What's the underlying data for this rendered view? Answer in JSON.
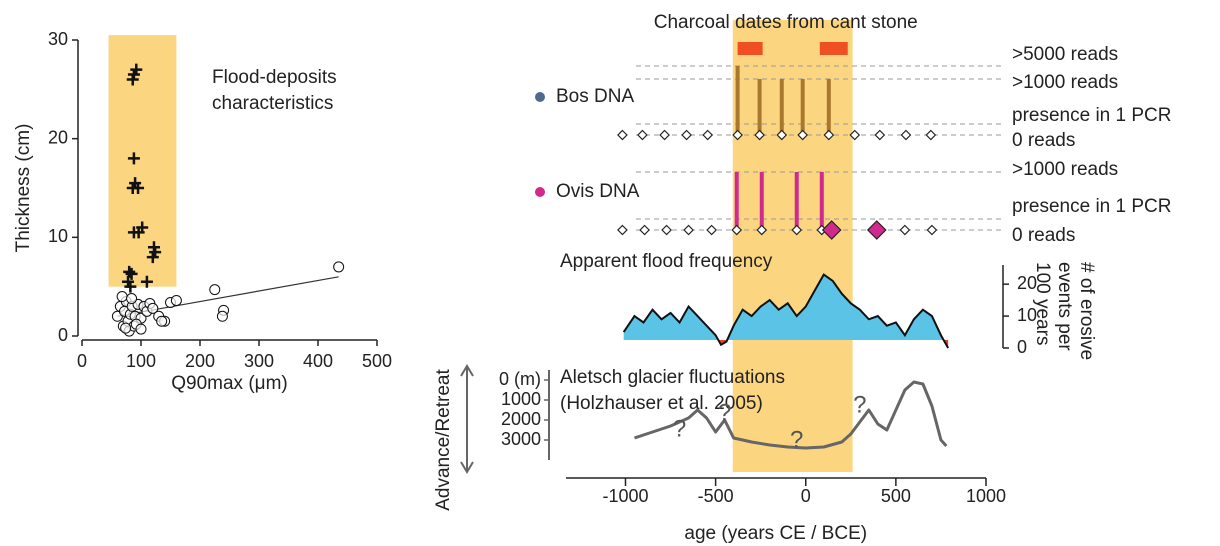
{
  "chart_data": [
    {
      "type": "scatter",
      "xlabel": "Q90max (μm)",
      "ylabel": "Thickness (cm)",
      "xlim": [
        0,
        500
      ],
      "ylim": [
        0,
        30
      ],
      "xticks": [
        0,
        100,
        200,
        300,
        400,
        500
      ],
      "yticks": [
        0,
        10,
        20,
        30
      ],
      "highlight": {
        "xlim": [
          45,
          160
        ],
        "ylim": [
          5,
          30.5
        ],
        "color": "#fcd581"
      },
      "annotation": [
        "Flood-deposits",
        "characteristics"
      ],
      "series": [
        {
          "marker": "plus",
          "color": "#111111",
          "x": [
            92,
            88,
            86,
            88,
            90,
            86,
            95,
            88,
            96,
            102,
            120,
            122,
            124,
            80,
            84,
            78,
            82,
            110
          ],
          "values": [
            27,
            26.5,
            26,
            18,
            15.5,
            15,
            15,
            10.5,
            10.5,
            11,
            8,
            9,
            8.5,
            6.5,
            6.3,
            5.5,
            5,
            5.5
          ]
        },
        {
          "marker": "circle",
          "color": "#111111",
          "x": [
            60,
            65,
            70,
            72,
            75,
            78,
            80,
            82,
            85,
            88,
            90,
            95,
            100,
            105,
            110,
            115,
            120,
            130,
            140,
            150,
            160,
            68,
            74,
            84,
            92,
            100,
            135,
            225,
            240,
            238,
            435
          ],
          "values": [
            2,
            3,
            1,
            2.5,
            3.5,
            1.5,
            0.5,
            2.2,
            3,
            1,
            2,
            3.2,
            1.8,
            3,
            2.5,
            3.3,
            2.8,
            2,
            1.5,
            3.4,
            3.6,
            4,
            0.8,
            3.8,
            1.2,
            0.7,
            1.5,
            4.7,
            2.6,
            2,
            7
          ]
        }
      ],
      "trendline": {
        "x": [
          60,
          435
        ],
        "values": [
          2,
          6
        ]
      }
    },
    {
      "type": "timeline",
      "xlabel": "age (years CE / BCE)",
      "xlim": [
        -1330,
        1000
      ],
      "xticks": [
        -1000,
        -500,
        0,
        500,
        1000
      ],
      "highlight": {
        "xlim": [
          -405,
          260
        ],
        "color": "#fcd581"
      },
      "charcoal": {
        "title": "Charcoal dates from cant stone",
        "color": "#f04e23",
        "ranges": [
          [
            -378,
            -239
          ],
          [
            78,
            233
          ]
        ]
      },
      "dna": [
        {
          "name": "Bos DNA",
          "color": "#a8782f",
          "label_color": "#4f6a8c",
          "levels": [
            "0 reads",
            "presence in 1 PCR",
            ">1000 reads",
            ">5000 reads"
          ],
          "x": [
            -1017,
            -906,
            -783,
            -661,
            -544,
            -378,
            -256,
            -133,
            -17,
            128,
            272,
            411,
            556,
            694
          ],
          "values": [
            "0 reads",
            "0 reads",
            "0 reads",
            "0 reads",
            "0 reads",
            ">5000 reads",
            ">1000 reads",
            ">1000 reads",
            ">1000 reads",
            ">1000 reads",
            "0 reads",
            "0 reads",
            "0 reads",
            "0 reads"
          ],
          "markers": [
            "small",
            "small",
            "small",
            "small",
            "small",
            "small",
            "small",
            "small",
            "small",
            "small",
            "small",
            "small",
            "small",
            "small"
          ]
        },
        {
          "name": "Ovis DNA",
          "color": "#d12a8e",
          "label_color": "#d12a8e",
          "levels": [
            "0 reads",
            "presence in 1 PCR",
            ">1000 reads"
          ],
          "x": [
            -1017,
            -894,
            -772,
            -650,
            -522,
            -383,
            -244,
            -50,
            89,
            144,
            394,
            550,
            700
          ],
          "values": [
            "0 reads",
            "0 reads",
            "0 reads",
            "0 reads",
            "0 reads",
            ">1000 reads",
            ">1000 reads",
            ">1000 reads",
            ">1000 reads",
            "0 reads",
            "0 reads",
            "0 reads",
            "0 reads"
          ],
          "markers": [
            "small",
            "small",
            "small",
            "small",
            "small",
            "small",
            "small",
            "small",
            "small",
            "large",
            "large",
            "small",
            "small"
          ]
        }
      ],
      "flood": {
        "title": "Apparent flood frequency",
        "ylabel": [
          "# of erosive",
          "events per",
          "100 years"
        ],
        "ylim": [
          0,
          26
        ],
        "yticks": [
          0,
          10,
          20
        ],
        "baseline": 2.5,
        "color": "#5bc3e6",
        "below_color": "#e8402a",
        "x": [
          -1010,
          -950,
          -900,
          -850,
          -800,
          -750,
          -700,
          -650,
          -600,
          -550,
          -500,
          -470,
          -440,
          -400,
          -350,
          -300,
          -250,
          -200,
          -150,
          -100,
          -50,
          0,
          50,
          100,
          150,
          200,
          250,
          300,
          350,
          400,
          450,
          500,
          550,
          600,
          650,
          700,
          750,
          790
        ],
        "values": [
          5,
          10,
          8,
          12,
          9,
          11,
          8,
          13,
          10,
          7,
          4,
          1,
          2,
          7,
          12,
          10,
          13,
          15,
          12,
          14,
          10,
          13,
          18,
          23,
          21,
          17,
          14,
          12,
          9,
          10,
          7,
          8,
          4,
          9,
          12,
          10,
          4,
          0
        ]
      },
      "glacier": {
        "title": "Aletsch glacier fluctuations",
        "subtitle": "(Holzhauser et al. 2005)",
        "ylabel": "Advance/Retreat",
        "ylim": [
          -500,
          4000
        ],
        "inverted": true,
        "yticks": [
          {
            "value": 0,
            "label": "0 (m)"
          },
          1000,
          2000,
          3000
        ],
        "color": "#666666",
        "x": [
          -950,
          -850,
          -750,
          -650,
          -600,
          -550,
          -500,
          -450,
          -400,
          -300,
          -200,
          -100,
          0,
          100,
          200,
          250,
          300,
          350,
          400,
          450,
          500,
          550,
          600,
          650,
          700,
          750,
          780
        ],
        "values": [
          2900,
          2600,
          2300,
          1900,
          1500,
          1900,
          2600,
          2000,
          2900,
          3100,
          3250,
          3350,
          3400,
          3350,
          3100,
          2700,
          2100,
          1500,
          2200,
          2500,
          1500,
          500,
          100,
          200,
          1300,
          3000,
          3300
        ],
        "annotations": [
          {
            "x": -700,
            "y": 2500,
            "text": "?"
          },
          {
            "x": -450,
            "y": 1700,
            "text": "?"
          },
          {
            "x": -50,
            "y": 3050,
            "text": "?"
          },
          {
            "x": 300,
            "y": 1300,
            "text": "?"
          }
        ]
      }
    }
  ]
}
